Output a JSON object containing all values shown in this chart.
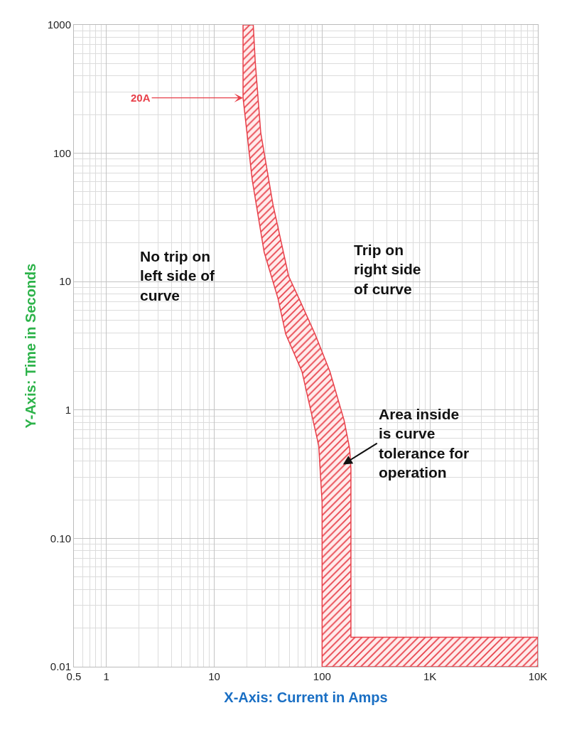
{
  "chart_data": {
    "type": "area",
    "xlabel": "X-Axis: Current in Amps",
    "ylabel": "Y-Axis: Time in Seconds",
    "log": "xy",
    "grid": true,
    "xlim": [
      0.5,
      10000
    ],
    "xticks": [
      0.5,
      1,
      10,
      100,
      {
        "value": 1000,
        "label": "1K"
      },
      {
        "value": 10000,
        "label": "10K"
      }
    ],
    "ylim": [
      0.01,
      1000
    ],
    "yticks": [
      0.01,
      {
        "value": 0.1,
        "label": "0.10"
      },
      1,
      10,
      100,
      1000
    ],
    "series": [
      {
        "color": "#e8404a",
        "x": [
          18.5,
          18.5,
          22.5,
          29,
          39,
          46,
          65,
          93,
          100,
          100,
          10000,
          10000,
          185,
          185,
          180,
          160,
          118,
          86,
          61,
          49,
          35,
          27,
          24,
          23,
          18.5
        ],
        "values": [
          1000,
          270,
          62,
          17,
          7.4,
          3.9,
          2.0,
          0.53,
          0.19,
          0.01,
          0.01,
          0.017,
          0.017,
          0.35,
          0.5,
          0.83,
          2.0,
          3.9,
          7.4,
          11,
          40,
          144,
          515,
          1000,
          1000
        ]
      }
    ],
    "annotations": [
      {
        "text": "20A",
        "x": 18.5,
        "y": 270
      },
      "No trip on left side of curve",
      "Trip on right side of curve",
      "Area inside is curve tolerance for operation"
    ]
  }
}
